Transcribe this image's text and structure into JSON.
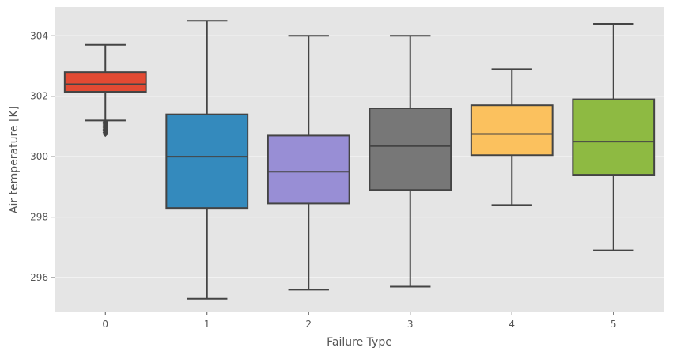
{
  "chart_data": {
    "type": "box",
    "title": "",
    "xlabel": "Failure Type",
    "ylabel": "Air temperature [K]",
    "categories": [
      "0",
      "1",
      "2",
      "3",
      "4",
      "5"
    ],
    "boxes": [
      {
        "category": "0",
        "whisker_low": 301.2,
        "q1": 302.15,
        "median": 302.4,
        "q3": 302.8,
        "whisker_high": 303.7,
        "color": "#e24a33",
        "outliers": [
          301.15,
          301.1,
          301.05,
          301.0,
          300.95,
          300.9,
          300.85,
          300.8,
          300.75
        ]
      },
      {
        "category": "1",
        "whisker_low": 295.3,
        "q1": 298.3,
        "median": 300.0,
        "q3": 301.4,
        "whisker_high": 304.5,
        "color": "#348abd",
        "outliers": []
      },
      {
        "category": "2",
        "whisker_low": 295.6,
        "q1": 298.45,
        "median": 299.5,
        "q3": 300.7,
        "whisker_high": 304.0,
        "color": "#988ed5",
        "outliers": []
      },
      {
        "category": "3",
        "whisker_low": 295.7,
        "q1": 298.9,
        "median": 300.35,
        "q3": 301.6,
        "whisker_high": 304.0,
        "color": "#777777",
        "outliers": []
      },
      {
        "category": "4",
        "whisker_low": 298.4,
        "q1": 300.05,
        "median": 300.75,
        "q3": 301.7,
        "whisker_high": 302.9,
        "color": "#fbc15e",
        "outliers": []
      },
      {
        "category": "5",
        "whisker_low": 296.9,
        "q1": 299.4,
        "median": 300.5,
        "q3": 301.9,
        "whisker_high": 304.4,
        "color": "#8eba42",
        "outliers": []
      }
    ],
    "y_ticks": [
      296,
      298,
      300,
      302,
      304
    ],
    "ylim": [
      294.85,
      304.95
    ],
    "grid": true,
    "legend": "none",
    "colors": {
      "background": "#e5e5e5",
      "grid": "#ffffff",
      "line": "#444444",
      "text": "#555555"
    }
  }
}
